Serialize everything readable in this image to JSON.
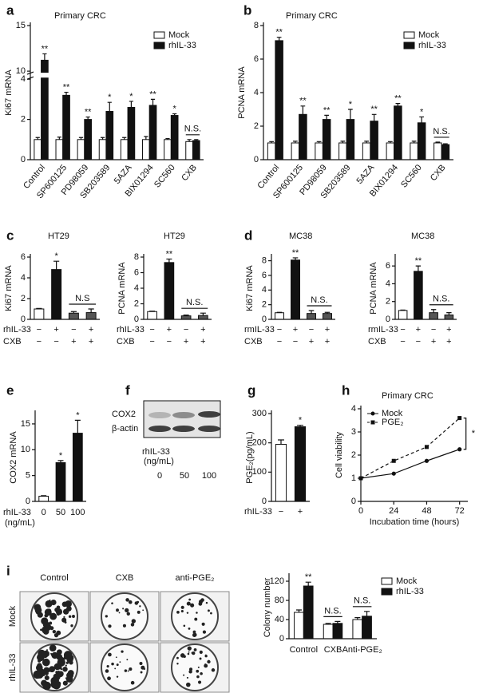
{
  "chart_data": [
    {
      "type": "bar",
      "panel": "a",
      "title": "Primary CRC",
      "ylabel": "Ki67 mRNA",
      "categories": [
        "Control",
        "SP600125",
        "PD98059",
        "SB203589",
        "5AZA",
        "BIX01294",
        "SC560",
        "CXB"
      ],
      "series": [
        {
          "name": "Mock",
          "color": "#ffffff",
          "values": [
            1,
            1,
            1,
            1,
            1,
            1,
            1,
            0.9
          ],
          "errors": [
            0.1,
            0.12,
            0.1,
            0.1,
            0.1,
            0.15,
            0.05,
            0.1
          ]
        },
        {
          "name": "rhIL-33",
          "color": "#111111",
          "values": [
            11.2,
            3.2,
            2.0,
            2.4,
            2.6,
            2.7,
            2.2,
            0.95
          ],
          "errors": [
            0.7,
            0.15,
            0.12,
            0.45,
            0.3,
            0.3,
            0.08,
            0.05
          ]
        }
      ],
      "annotations": [
        "**",
        "**",
        "**",
        "*",
        "*",
        "**",
        "*",
        null
      ],
      "brackets": [
        {
          "label": "N.S.",
          "span": [
            7,
            7
          ]
        }
      ],
      "ylim": [
        0,
        15
      ],
      "yticks": [
        0,
        2,
        4,
        10,
        15
      ],
      "axis_break": [
        4,
        10
      ],
      "legend": "upper right"
    },
    {
      "type": "bar",
      "panel": "b",
      "title": "Primary CRC",
      "ylabel": "PCNA mRNA",
      "categories": [
        "Control",
        "SP600125",
        "PD98059",
        "SB203589",
        "5AZA",
        "BIX01294",
        "SC560",
        "CXB"
      ],
      "series": [
        {
          "name": "Mock",
          "color": "#ffffff",
          "values": [
            1,
            1,
            1,
            1,
            1,
            1,
            1,
            1
          ],
          "errors": [
            0.08,
            0.1,
            0.08,
            0.1,
            0.1,
            0.08,
            0.1,
            0.05
          ]
        },
        {
          "name": "rhIL-33",
          "color": "#111111",
          "values": [
            7.1,
            2.7,
            2.4,
            2.4,
            2.3,
            3.2,
            2.2,
            0.9
          ],
          "errors": [
            0.2,
            0.5,
            0.25,
            0.6,
            0.4,
            0.15,
            0.35,
            0.05
          ]
        }
      ],
      "annotations": [
        "**",
        "**",
        "**",
        "*",
        "**",
        "**",
        "*",
        null
      ],
      "brackets": [
        {
          "label": "N.S.",
          "span": [
            7,
            7
          ]
        }
      ],
      "ylim": [
        0,
        8
      ],
      "yticks": [
        0,
        2,
        4,
        6,
        8
      ],
      "legend": "upper right"
    },
    {
      "type": "bar",
      "panel": "c",
      "title": "HT29",
      "ylabel": "Ki67 mRNA",
      "values": [
        1,
        4.8,
        0.6,
        0.65
      ],
      "errors": [
        0.05,
        0.8,
        0.15,
        0.35
      ],
      "colors": [
        "#ffffff",
        "#111111",
        "#555555",
        "#555555"
      ],
      "annotations": [
        null,
        "*",
        null,
        null
      ],
      "brackets": [
        {
          "label": "N.S",
          "span": [
            2,
            3
          ]
        }
      ],
      "conditions": [
        {
          "name": "rhIL-33",
          "values": [
            "−",
            "+",
            "−",
            "+"
          ]
        },
        {
          "name": "CXB",
          "values": [
            "−",
            "−",
            "+",
            "+"
          ]
        }
      ],
      "ylim": [
        0,
        6
      ],
      "yticks": [
        0,
        2,
        4,
        6
      ]
    },
    {
      "type": "bar",
      "title": "HT29",
      "ylabel": "PCNA mRNA",
      "values": [
        1,
        7.3,
        0.45,
        0.5
      ],
      "errors": [
        0.05,
        0.45,
        0.1,
        0.3
      ],
      "colors": [
        "#ffffff",
        "#111111",
        "#555555",
        "#555555"
      ],
      "annotations": [
        null,
        "**",
        null,
        null
      ],
      "brackets": [
        {
          "label": "N.S.",
          "span": [
            2,
            3
          ]
        }
      ],
      "conditions": [
        {
          "name": "rhIL-33",
          "values": [
            "−",
            "+",
            "−",
            "+"
          ]
        },
        {
          "name": "CXB",
          "values": [
            "−",
            "−",
            "+",
            "+"
          ]
        }
      ],
      "ylim": [
        0,
        8
      ],
      "yticks": [
        0,
        2,
        4,
        6,
        8
      ]
    },
    {
      "type": "bar",
      "panel": "d",
      "title": "MC38",
      "ylabel": "Ki67 mRNA",
      "values": [
        0.9,
        8.1,
        0.8,
        0.8
      ],
      "errors": [
        0.05,
        0.3,
        0.4,
        0.15
      ],
      "colors": [
        "#ffffff",
        "#111111",
        "#555555",
        "#555555"
      ],
      "annotations": [
        null,
        "**",
        null,
        null
      ],
      "brackets": [
        {
          "label": "N.S.",
          "span": [
            2,
            3
          ]
        }
      ],
      "conditions": [
        {
          "name": "rmIL-33",
          "values": [
            "−",
            "+",
            "−",
            "+"
          ]
        },
        {
          "name": "CXB",
          "values": [
            "−",
            "−",
            "+",
            "+"
          ]
        }
      ],
      "ylim": [
        0,
        8.5
      ],
      "yticks": [
        0,
        2,
        4,
        6,
        8
      ]
    },
    {
      "type": "bar",
      "title": "MC38",
      "ylabel": "PCNA mRNA",
      "values": [
        1,
        5.4,
        0.75,
        0.5
      ],
      "errors": [
        0.05,
        0.6,
        0.35,
        0.25
      ],
      "colors": [
        "#ffffff",
        "#111111",
        "#555555",
        "#555555"
      ],
      "annotations": [
        null,
        "**",
        null,
        null
      ],
      "brackets": [
        {
          "label": "N.S.",
          "span": [
            2,
            3
          ]
        }
      ],
      "conditions": [
        {
          "name": "rmIL-33",
          "values": [
            "−",
            "+",
            "−",
            "+"
          ]
        },
        {
          "name": "CXB",
          "values": [
            "−",
            "−",
            "+",
            "+"
          ]
        }
      ],
      "ylim": [
        0,
        7
      ],
      "yticks": [
        0,
        2,
        4,
        6
      ]
    },
    {
      "type": "bar",
      "panel": "e",
      "ylabel": "COX2 mRNA",
      "xlabel": "rhIL-33",
      "xlabel_unit": "(ng/mL)",
      "categories": [
        "0",
        "50",
        "100"
      ],
      "values": [
        1,
        7.5,
        13.2
      ],
      "errors": [
        0.1,
        0.4,
        2.5
      ],
      "colors": [
        "#ffffff",
        "#111111",
        "#111111"
      ],
      "annotations": [
        null,
        "*",
        "*"
      ],
      "ylim": [
        0,
        17
      ],
      "yticks": [
        0,
        5,
        10,
        15
      ]
    },
    {
      "type": "bar",
      "panel": "g",
      "ylabel": "PGE₂(pg/mL)",
      "values": [
        195,
        255
      ],
      "errors": [
        15,
        5
      ],
      "colors": [
        "#ffffff",
        "#111111"
      ],
      "annotations": [
        null,
        "*"
      ],
      "conditions": [
        {
          "name": "rhIL-33",
          "values": [
            "−",
            "+"
          ]
        }
      ],
      "ylim": [
        0,
        300
      ],
      "yticks": [
        0,
        100,
        200,
        300
      ]
    },
    {
      "type": "line",
      "panel": "h",
      "title": "Primary CRC",
      "xlabel": "Incubation time (hours)",
      "ylabel": "Cell viability",
      "x": [
        0,
        24,
        48,
        72
      ],
      "series": [
        {
          "name": "Mock",
          "color": "#111111",
          "marker": "circle",
          "linestyle": "solid",
          "values": [
            1,
            1.2,
            1.75,
            2.25
          ]
        },
        {
          "name": "PGE₂",
          "color": "#111111",
          "marker": "square",
          "linestyle": "dashed",
          "values": [
            1,
            1.75,
            2.35,
            3.6
          ]
        }
      ],
      "significance": "*",
      "xlim": [
        0,
        78
      ],
      "xticks": [
        0,
        24,
        48,
        72
      ],
      "ylim": [
        0,
        4
      ],
      "yticks": [
        0,
        1,
        2,
        3,
        4
      ],
      "legend": "upper left"
    },
    {
      "type": "bar",
      "ylabel": "Colony number",
      "categories": [
        "Control",
        "CXB",
        "Anti-PGE₂"
      ],
      "series": [
        {
          "name": "Mock",
          "color": "#ffffff",
          "values": [
            55,
            30,
            40
          ],
          "errors": [
            5,
            2,
            4
          ]
        },
        {
          "name": "rhIL-33",
          "color": "#111111",
          "values": [
            110,
            32,
            47
          ],
          "errors": [
            8,
            4,
            10
          ]
        }
      ],
      "annotations": [
        "**",
        null,
        null
      ],
      "brackets": [
        {
          "label": "N.S.",
          "span": [
            1,
            1
          ]
        },
        {
          "label": "N.S.",
          "span": [
            2,
            2
          ]
        }
      ],
      "ylim": [
        0,
        130
      ],
      "yticks": [
        0,
        40,
        80,
        120
      ],
      "legend": "upper right"
    }
  ],
  "blot": {
    "panel": "f",
    "rows": [
      "COX2",
      "β-actin"
    ],
    "xlabel": "rhIL-33",
    "xlabel_unit": "(ng/mL)",
    "lanes": [
      "0",
      "50",
      "100"
    ]
  },
  "plates": {
    "panel": "i",
    "columns": [
      "Control",
      "CXB",
      "anti-PGE₂"
    ],
    "rows": [
      "Mock",
      "rhIL-33"
    ]
  }
}
